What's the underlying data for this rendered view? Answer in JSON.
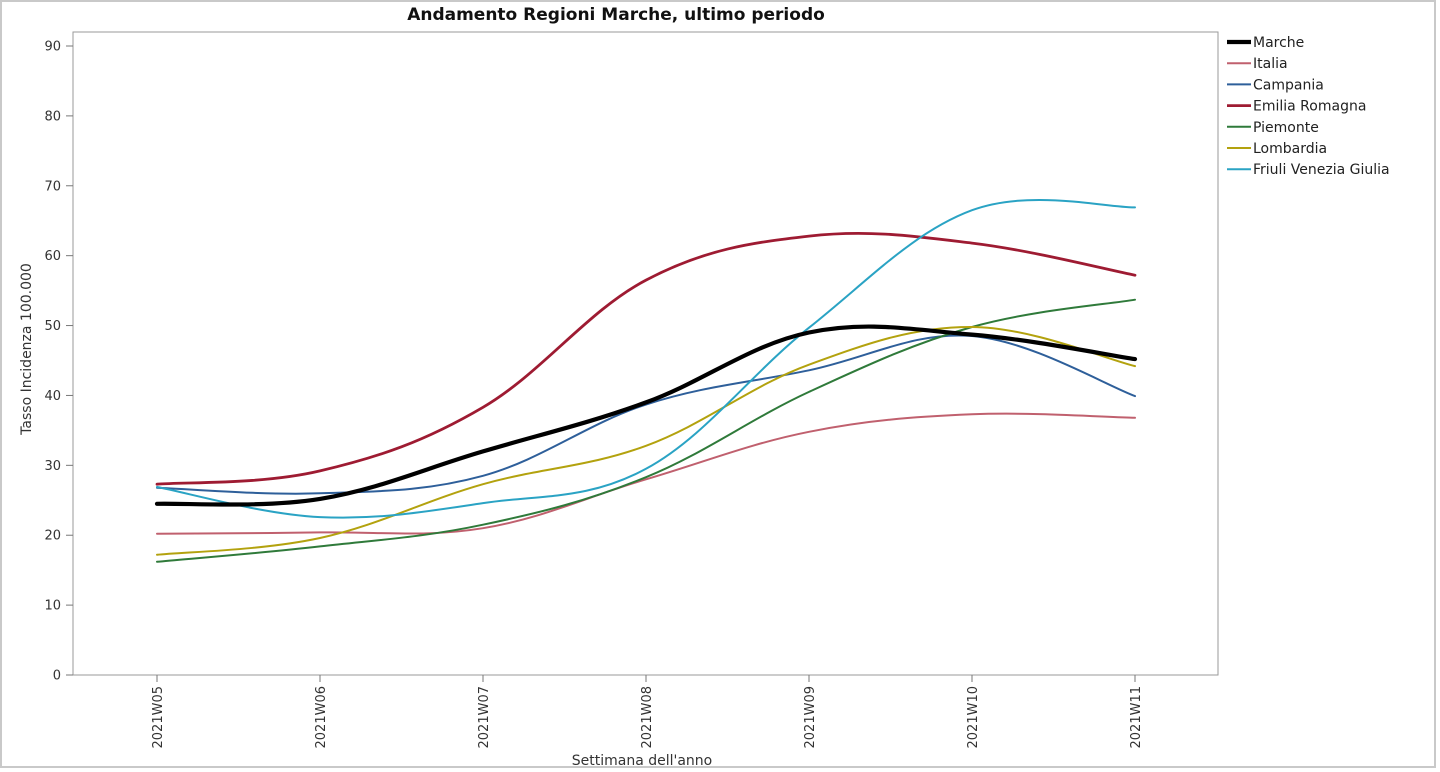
{
  "chart_data": {
    "type": "line",
    "title": "Andamento Regioni Marche, ultimo periodo",
    "xlabel": "Settimana dell'anno",
    "ylabel": "Tasso Incidenza 100.000",
    "ylim": [
      0,
      90
    ],
    "yticks": [
      "0",
      "10",
      "20",
      "30",
      "40",
      "50",
      "60",
      "70",
      "80",
      "90"
    ],
    "categories": [
      "2021W05",
      "2021W06",
      "2021W07",
      "2021W08",
      "2021W09",
      "2021W10",
      "2021W11"
    ],
    "grid": false,
    "legend_position": "right",
    "smooth": true,
    "series": [
      {
        "name": "Marche",
        "color": "#000000",
        "values": [
          24.5,
          25.2,
          32.0,
          39.0,
          49.0,
          48.7,
          45.2
        ]
      },
      {
        "name": "Italia",
        "color": "#c0606e",
        "values": [
          20.2,
          20.4,
          21.0,
          28.0,
          34.8,
          37.3,
          36.8
        ]
      },
      {
        "name": "Campania",
        "color": "#2e5f9a",
        "values": [
          26.8,
          26.0,
          28.5,
          38.7,
          43.6,
          48.5,
          39.9
        ]
      },
      {
        "name": "Emilia Romagna",
        "color": "#9e1b32",
        "values": [
          27.3,
          29.2,
          38.3,
          56.5,
          62.8,
          61.8,
          57.2
        ]
      },
      {
        "name": "Piemonte",
        "color": "#2f7a3a",
        "values": [
          16.2,
          18.4,
          21.5,
          28.3,
          40.5,
          49.8,
          53.7
        ]
      },
      {
        "name": "Lombardia",
        "color": "#b3a20e",
        "values": [
          17.2,
          19.6,
          27.3,
          32.8,
          44.4,
          49.8,
          44.2
        ]
      },
      {
        "name": "Friuli Venezia Giulia",
        "color": "#2aa3c4",
        "values": [
          26.9,
          22.6,
          24.6,
          29.5,
          49.7,
          66.5,
          66.9
        ]
      }
    ]
  }
}
